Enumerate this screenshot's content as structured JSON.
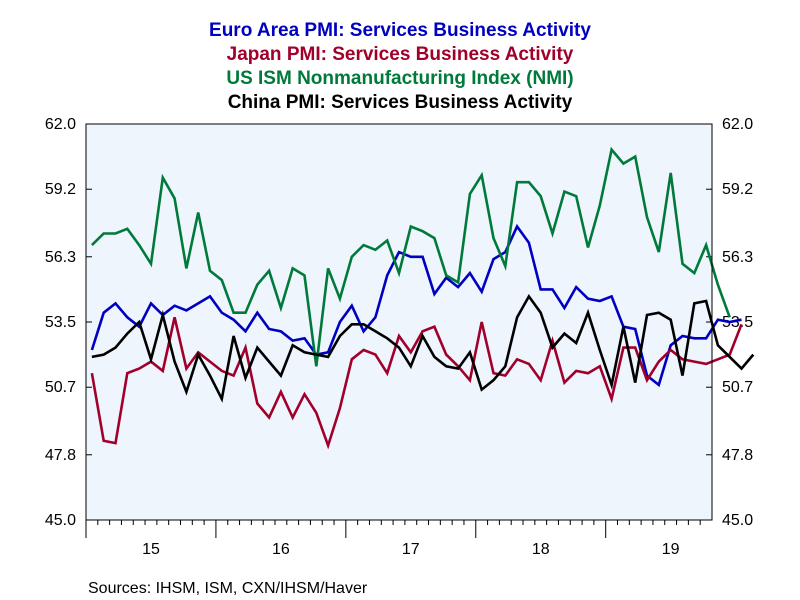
{
  "chart_data": {
    "type": "line",
    "titles": [
      {
        "text": "Euro Area PMI: Services Business Activity",
        "color": "#0000c0"
      },
      {
        "text": "Japan PMI: Services Business Activity",
        "color": "#a0002a"
      },
      {
        "text": "US ISM Nonmanufacturing Index (NMI)",
        "color": "#007a3a"
      },
      {
        "text": "China PMI: Services Business Activity",
        "color": "#000000"
      }
    ],
    "ylim": [
      45.0,
      62.0
    ],
    "yticks": [
      "45.0",
      "47.8",
      "50.7",
      "53.5",
      "56.3",
      "59.2",
      "62.0"
    ],
    "xlim": [
      0,
      53
    ],
    "x_tick_labels": [
      {
        "label": "15",
        "x": 5.5
      },
      {
        "label": "16",
        "x": 16.5
      },
      {
        "label": "17",
        "x": 27.5
      },
      {
        "label": "18",
        "x": 38.5
      },
      {
        "label": "19",
        "x": 49.5
      }
    ],
    "x_year_boundaries": [
      0,
      11,
      22,
      33,
      44
    ],
    "background": "#eef5fd",
    "source": "Sources:  IHSM, ISM, CXN/IHSM/Haver",
    "series": [
      {
        "color": "#0000c0",
        "values": [
          52.3,
          53.9,
          54.3,
          53.7,
          53.3,
          54.3,
          53.8,
          54.2,
          54.0,
          54.3,
          54.6,
          53.9,
          53.6,
          53.1,
          53.9,
          53.2,
          53.1,
          52.7,
          52.8,
          52.1,
          52.2,
          53.5,
          54.2,
          53.1,
          53.7,
          55.5,
          56.5,
          56.3,
          56.3,
          54.7,
          55.4,
          55.0,
          55.6,
          54.8,
          56.2,
          56.5,
          57.6,
          56.9,
          54.9,
          54.9,
          54.1,
          55.0,
          54.5,
          54.4,
          54.6,
          53.3,
          53.2,
          51.2,
          50.8,
          52.5,
          52.9,
          52.8,
          52.8,
          53.6,
          53.5,
          53.6
        ]
      },
      {
        "color": "#a0002a",
        "values": [
          51.3,
          48.4,
          48.3,
          51.3,
          51.5,
          51.8,
          51.4,
          53.7,
          51.5,
          52.2,
          51.8,
          51.4,
          51.2,
          52.4,
          50.0,
          49.4,
          50.5,
          49.4,
          50.4,
          49.6,
          48.2,
          49.8,
          51.9,
          52.3,
          52.1,
          51.3,
          52.9,
          52.2,
          53.1,
          53.3,
          52.1,
          51.6,
          51.0,
          53.5,
          51.3,
          51.2,
          51.9,
          51.7,
          51.0,
          52.7,
          50.9,
          51.4,
          51.3,
          51.6,
          50.2,
          52.4,
          52.4,
          51.0,
          51.8,
          52.3,
          51.9,
          51.8,
          51.7,
          51.9,
          52.1,
          53.4
        ]
      },
      {
        "color": "#007a3a",
        "values": [
          56.8,
          57.3,
          57.3,
          57.5,
          56.8,
          56.0,
          59.7,
          58.8,
          55.8,
          58.2,
          55.7,
          55.3,
          53.9,
          53.9,
          55.1,
          55.7,
          54.1,
          55.8,
          55.5,
          51.6,
          55.8,
          54.5,
          56.3,
          56.8,
          56.6,
          57.0,
          55.6,
          57.6,
          57.4,
          57.1,
          55.5,
          55.2,
          59.0,
          59.8,
          57.1,
          55.9,
          59.5,
          59.5,
          58.9,
          57.3,
          59.1,
          58.9,
          56.7,
          58.5,
          60.9,
          60.3,
          60.6,
          58.0,
          56.5,
          59.9,
          56.0,
          55.6,
          56.8,
          55.1,
          53.7
        ]
      },
      {
        "color": "#000000",
        "values": [
          52.0,
          52.1,
          52.4,
          53.0,
          53.5,
          51.9,
          53.8,
          51.8,
          50.5,
          52.1,
          51.2,
          50.2,
          52.9,
          51.1,
          52.4,
          51.8,
          51.2,
          52.5,
          52.2,
          52.1,
          52.0,
          52.9,
          53.4,
          53.4,
          53.1,
          52.8,
          52.4,
          51.6,
          52.9,
          52.0,
          51.6,
          51.5,
          52.2,
          50.6,
          51.0,
          51.6,
          53.7,
          54.6,
          53.9,
          52.4,
          53.0,
          52.6,
          53.9,
          52.3,
          50.8,
          53.3,
          50.9,
          53.8,
          53.9,
          53.6,
          51.2,
          54.3,
          54.4,
          52.5,
          52.0,
          51.5,
          52.1
        ]
      }
    ]
  }
}
